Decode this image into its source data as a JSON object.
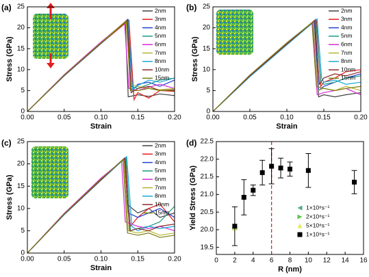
{
  "chart_data": [
    {
      "type": "line",
      "panel_label": "(a)",
      "x_label": "Strain",
      "y_label": "Stress (GPa)",
      "xlim": [
        0,
        0.2
      ],
      "ylim": [
        0,
        25
      ],
      "xticks": [
        {
          "value": 0,
          "label": "0.00"
        },
        {
          "value": 0.05,
          "label": "0.05"
        },
        {
          "value": 0.1,
          "label": "0.10"
        },
        {
          "value": 0.15,
          "label": "0.15"
        },
        {
          "value": 0.2,
          "label": "0.20"
        }
      ],
      "yticks": [
        0,
        5,
        10,
        15,
        20,
        25
      ],
      "series": [
        {
          "name": "2nm",
          "color": "#404040",
          "x": [
            0,
            0.05,
            0.1,
            0.133,
            0.137,
            0.15,
            0.165,
            0.18,
            0.2
          ],
          "values": [
            0,
            8.7,
            16.5,
            21.5,
            3.5,
            4,
            3.6,
            4.2,
            3.8
          ]
        },
        {
          "name": "3nm",
          "color": "#e41a1c",
          "x": [
            0,
            0.05,
            0.1,
            0.138,
            0.145,
            0.15,
            0.165,
            0.18,
            0.2
          ],
          "values": [
            0,
            8.5,
            16.2,
            21.8,
            2.8,
            4.5,
            3.2,
            5,
            4.8
          ]
        },
        {
          "name": "4nm",
          "color": "#1f3fd6",
          "x": [
            0,
            0.05,
            0.1,
            0.136,
            0.143,
            0.15,
            0.165,
            0.18,
            0.2
          ],
          "values": [
            0,
            8.6,
            16.4,
            22,
            5,
            6.5,
            7,
            6,
            7.5
          ]
        },
        {
          "name": "5nm",
          "color": "#1a9a80",
          "x": [
            0,
            0.05,
            0.1,
            0.135,
            0.141,
            0.15,
            0.165,
            0.18,
            0.2
          ],
          "values": [
            0,
            8.6,
            16.3,
            21.6,
            6,
            5.5,
            6.5,
            7.5,
            8
          ]
        },
        {
          "name": "6nm",
          "color": "#d62ad6",
          "x": [
            0,
            0.05,
            0.1,
            0.132,
            0.138,
            0.15,
            0.165,
            0.18,
            0.2
          ],
          "values": [
            0,
            8.8,
            16.6,
            21.3,
            5.5,
            5,
            5.8,
            6.5,
            5.5
          ]
        },
        {
          "name": "7nm",
          "color": "#b5b52a",
          "x": [
            0,
            0.05,
            0.1,
            0.134,
            0.14,
            0.15,
            0.165,
            0.18,
            0.2
          ],
          "values": [
            0,
            8.6,
            16.4,
            21.7,
            6.5,
            6,
            5.5,
            5.2,
            5.5
          ]
        },
        {
          "name": "8nm",
          "color": "#18a8d8",
          "x": [
            0,
            0.05,
            0.1,
            0.137,
            0.143,
            0.15,
            0.165,
            0.18,
            0.2
          ],
          "values": [
            0,
            8.5,
            16.2,
            21.9,
            5.2,
            6.2,
            7.5,
            7,
            8
          ]
        },
        {
          "name": "10nm",
          "color": "#8b2a2a",
          "x": [
            0,
            0.05,
            0.1,
            0.136,
            0.141,
            0.15,
            0.165,
            0.18,
            0.2
          ],
          "values": [
            0,
            8.6,
            16.3,
            21.8,
            4.5,
            5.5,
            6,
            5,
            5.2
          ]
        },
        {
          "name": "15nm",
          "color": "#7a7a10",
          "x": [
            0,
            0.05,
            0.1,
            0.135,
            0.14,
            0.15,
            0.165,
            0.18,
            0.2
          ],
          "values": [
            0,
            8.7,
            16.4,
            21.5,
            5,
            5,
            5.5,
            5,
            5
          ]
        }
      ]
    },
    {
      "type": "line",
      "panel_label": "(b)",
      "x_label": "Strain",
      "y_label": "Stress (GPa)",
      "xlim": [
        0,
        0.2
      ],
      "ylim": [
        0,
        25
      ],
      "xticks": [
        {
          "value": 0,
          "label": "0.00"
        },
        {
          "value": 0.05,
          "label": "0.05"
        },
        {
          "value": 0.1,
          "label": "0.10"
        },
        {
          "value": 0.15,
          "label": "0.15"
        },
        {
          "value": 0.2,
          "label": "0.20"
        }
      ],
      "yticks": [
        0,
        5,
        10,
        15,
        20,
        25
      ],
      "series": [
        {
          "name": "2nm",
          "color": "#404040",
          "x": [
            0,
            0.05,
            0.1,
            0.138,
            0.143,
            0.15,
            0.165,
            0.18,
            0.2
          ],
          "values": [
            0,
            8.5,
            16.1,
            21.6,
            3.5,
            4,
            3.5,
            4,
            4.5
          ]
        },
        {
          "name": "3nm",
          "color": "#e41a1c",
          "x": [
            0,
            0.05,
            0.1,
            0.14,
            0.146,
            0.15,
            0.165,
            0.18,
            0.2
          ],
          "values": [
            0,
            8.4,
            16,
            21.9,
            6,
            7,
            8,
            9.5,
            10
          ]
        },
        {
          "name": "4nm",
          "color": "#1f3fd6",
          "x": [
            0,
            0.05,
            0.1,
            0.137,
            0.143,
            0.15,
            0.165,
            0.18,
            0.2
          ],
          "values": [
            0,
            8.5,
            16.2,
            21.7,
            5,
            6,
            7,
            8,
            9
          ]
        },
        {
          "name": "5nm",
          "color": "#1a9a80",
          "x": [
            0,
            0.05,
            0.1,
            0.139,
            0.146,
            0.15,
            0.165,
            0.18,
            0.2
          ],
          "values": [
            0,
            8.4,
            16.1,
            22,
            7,
            6.5,
            7,
            8,
            8.5
          ]
        },
        {
          "name": "6nm",
          "color": "#d62ad6",
          "x": [
            0,
            0.05,
            0.1,
            0.135,
            0.141,
            0.15,
            0.165,
            0.18,
            0.2
          ],
          "values": [
            0,
            8.7,
            16.4,
            21.4,
            4,
            4.5,
            5,
            5.5,
            4
          ]
        },
        {
          "name": "7nm",
          "color": "#b5b52a",
          "x": [
            0,
            0.05,
            0.1,
            0.136,
            0.142,
            0.15,
            0.165,
            0.18,
            0.2
          ],
          "values": [
            0,
            8.6,
            16.3,
            21.6,
            5,
            5.5,
            5,
            6,
            5
          ]
        },
        {
          "name": "8nm",
          "color": "#18a8d8",
          "x": [
            0,
            0.05,
            0.1,
            0.141,
            0.147,
            0.15,
            0.165,
            0.18,
            0.2
          ],
          "values": [
            0,
            8.3,
            15.9,
            22.1,
            8,
            7,
            7.5,
            6.5,
            7
          ]
        },
        {
          "name": "10nm",
          "color": "#8b2a2a",
          "x": [
            0,
            0.05,
            0.1,
            0.138,
            0.144,
            0.15,
            0.165,
            0.18,
            0.2
          ],
          "values": [
            0,
            8.5,
            16.1,
            21.8,
            6.5,
            8,
            9,
            8.5,
            9.5
          ]
        },
        {
          "name": "15nm",
          "color": "#7a7a10",
          "x": [
            0,
            0.05,
            0.1,
            0.134,
            0.14,
            0.15,
            0.165,
            0.18,
            0.2
          ],
          "values": [
            0,
            8.7,
            16.4,
            21.2,
            6,
            5.5,
            5,
            5.5,
            6
          ]
        }
      ]
    },
    {
      "type": "line",
      "panel_label": "(c)",
      "x_label": "Strain",
      "y_label": "Stress (GPa)",
      "xlim": [
        0,
        0.2
      ],
      "ylim": [
        0,
        25
      ],
      "xticks": [
        {
          "value": 0,
          "label": "0.00"
        },
        {
          "value": 0.05,
          "label": "0.05"
        },
        {
          "value": 0.1,
          "label": "0.10"
        },
        {
          "value": 0.15,
          "label": "0.15"
        },
        {
          "value": 0.2,
          "label": "0.20"
        }
      ],
      "yticks": [
        0,
        5,
        10,
        15,
        20,
        25
      ],
      "series": [
        {
          "name": "2nm",
          "color": "#404040",
          "x": [
            0,
            0.05,
            0.1,
            0.13,
            0.135,
            0.15,
            0.165,
            0.18,
            0.2
          ],
          "values": [
            0,
            8.8,
            16.6,
            21,
            11,
            9,
            10,
            8,
            9
          ]
        },
        {
          "name": "3nm",
          "color": "#e41a1c",
          "x": [
            0,
            0.05,
            0.1,
            0.133,
            0.14,
            0.15,
            0.165,
            0.18,
            0.2
          ],
          "values": [
            0,
            8.7,
            16.5,
            21.3,
            6,
            8,
            10,
            11,
            7
          ]
        },
        {
          "name": "4nm",
          "color": "#1f3fd6",
          "x": [
            0,
            0.05,
            0.1,
            0.132,
            0.137,
            0.15,
            0.165,
            0.18,
            0.2
          ],
          "values": [
            0,
            8.7,
            16.5,
            21.2,
            9,
            8,
            9,
            10,
            8
          ]
        },
        {
          "name": "5nm",
          "color": "#1a9a80",
          "x": [
            0,
            0.05,
            0.1,
            0.134,
            0.14,
            0.15,
            0.165,
            0.18,
            0.2
          ],
          "values": [
            0,
            8.6,
            16.4,
            21.5,
            5,
            5.5,
            6,
            7,
            10.5
          ]
        },
        {
          "name": "6nm",
          "color": "#d62ad6",
          "x": [
            0,
            0.05,
            0.1,
            0.128,
            0.133,
            0.15,
            0.165,
            0.18,
            0.2
          ],
          "values": [
            0,
            8.9,
            16.8,
            20.6,
            7,
            6,
            5.5,
            6,
            5
          ]
        },
        {
          "name": "7nm",
          "color": "#b5b52a",
          "x": [
            0,
            0.05,
            0.1,
            0.131,
            0.137,
            0.15,
            0.165,
            0.18,
            0.2
          ],
          "values": [
            0,
            8.7,
            16.5,
            21,
            5,
            4.5,
            5,
            4,
            4.5
          ]
        },
        {
          "name": "8nm",
          "color": "#18a8d8",
          "x": [
            0,
            0.05,
            0.1,
            0.135,
            0.142,
            0.15,
            0.165,
            0.18,
            0.2
          ],
          "values": [
            0,
            8.6,
            16.3,
            21.6,
            6,
            5,
            6,
            5.5,
            6
          ]
        },
        {
          "name": "10nm",
          "color": "#8b2a2a",
          "x": [
            0,
            0.05,
            0.1,
            0.132,
            0.139,
            0.15,
            0.165,
            0.18,
            0.2
          ],
          "values": [
            0,
            8.7,
            16.4,
            21.3,
            5,
            5.5,
            5,
            6,
            6.5
          ]
        },
        {
          "name": "15nm",
          "color": "#7a7a10",
          "x": [
            0,
            0.05,
            0.1,
            0.13,
            0.136,
            0.15,
            0.165,
            0.18,
            0.2
          ],
          "values": [
            0,
            8.8,
            16.6,
            20.9,
            4.5,
            4,
            4.5,
            3.5,
            4
          ]
        }
      ]
    },
    {
      "type": "scatter",
      "panel_label": "(d)",
      "x_label": "R (nm)",
      "y_label": "Yield Stress (GPa)",
      "xlim": [
        0,
        16
      ],
      "ylim": [
        19.3,
        22.5
      ],
      "xticks": [
        0,
        2,
        4,
        6,
        8,
        10,
        12,
        14,
        16
      ],
      "yticks": [
        19.5,
        {
          "value": 20,
          "label": "20.0"
        },
        20.5,
        {
          "value": 21,
          "label": "21.0"
        },
        21.5,
        {
          "value": 22,
          "label": "22.0"
        },
        22.5
      ],
      "vline": {
        "x": 6,
        "color": "#e02020"
      },
      "series": [
        {
          "name": "1×10⁸s⁻¹",
          "color": "#4fa88c",
          "marker": "triangle-left",
          "x": [
            2
          ],
          "values": [
            20.05
          ]
        },
        {
          "name": "2×10⁸s⁻¹",
          "color": "#5cc84a",
          "marker": "triangle-right",
          "x": [
            2
          ],
          "values": [
            20.05
          ]
        },
        {
          "name": "5×10⁸s⁻¹",
          "color": "#e8e860",
          "marker": "triangle-up",
          "x": [
            2
          ],
          "values": [
            20.05
          ]
        },
        {
          "name": "1×10⁹s⁻¹",
          "color": "#000000",
          "marker": "square",
          "x": [
            2,
            3,
            4,
            5,
            6,
            7,
            8,
            10,
            15
          ],
          "values": [
            20.1,
            20.92,
            21.12,
            21.62,
            21.8,
            21.75,
            21.72,
            21.68,
            21.35
          ],
          "errors": [
            0.55,
            0.5,
            0.15,
            0.35,
            0.5,
            0.28,
            0.2,
            0.48,
            0.33
          ]
        }
      ]
    }
  ]
}
